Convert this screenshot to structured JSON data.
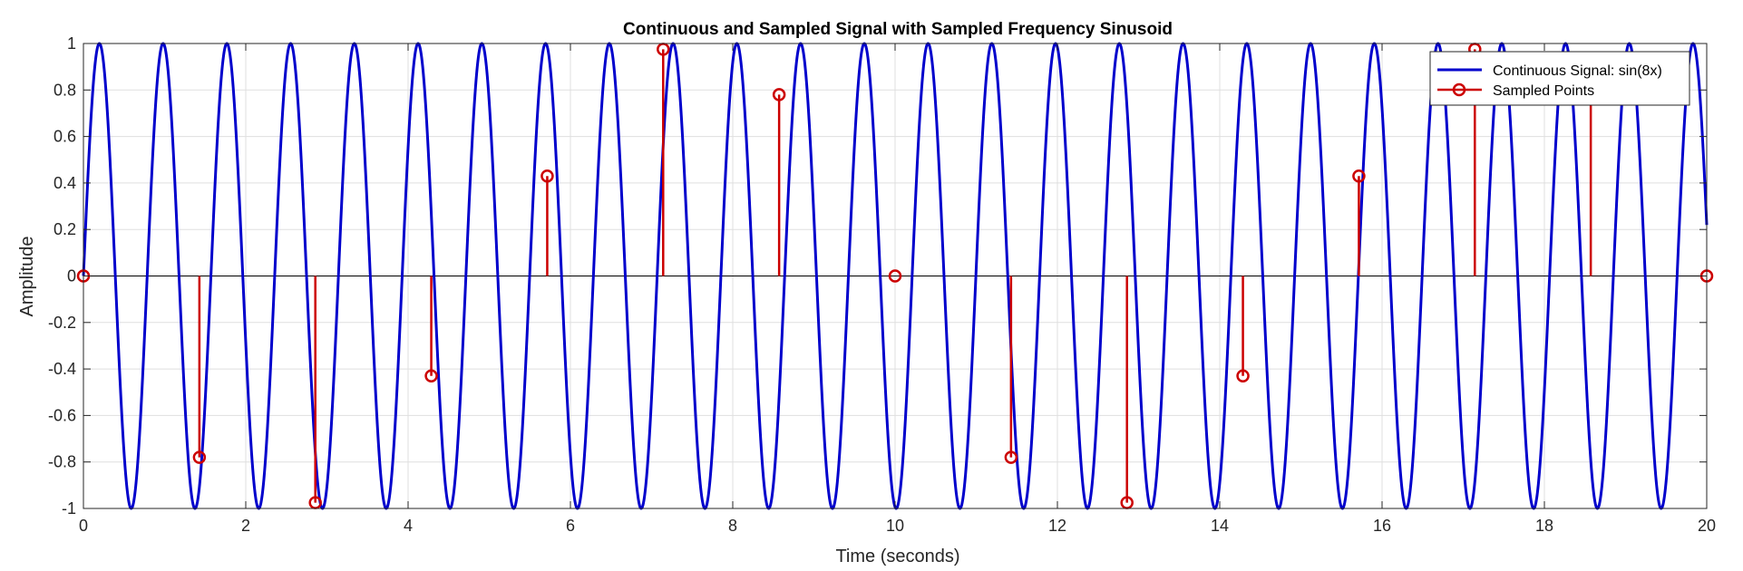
{
  "chart_data": {
    "type": "line",
    "title": "Continuous and Sampled Signal with Sampled Frequency Sinusoid",
    "xlabel": "Time (seconds)",
    "ylabel": "Amplitude",
    "xlim": [
      0,
      20
    ],
    "ylim": [
      -1,
      1
    ],
    "xticks": [
      0,
      2,
      4,
      6,
      8,
      10,
      12,
      14,
      16,
      18,
      20
    ],
    "yticks": [
      -1,
      -0.8,
      -0.6,
      -0.4,
      -0.2,
      0,
      0.2,
      0.4,
      0.6,
      0.8,
      1
    ],
    "grid": true,
    "legend_position": "top-right",
    "series": [
      {
        "name": "Continuous Signal: sin(8x)",
        "style": "line",
        "color": "#0000cc",
        "function": "sin(8x)"
      },
      {
        "name": "Sampled Points",
        "style": "stem",
        "color": "#cc0000",
        "x": [
          0,
          1.4286,
          2.8571,
          4.2857,
          5.7143,
          7.1429,
          8.5714,
          10,
          11.4286,
          12.8571,
          14.2857,
          15.7143,
          17.1429,
          18.5714,
          20
        ],
        "y": [
          0,
          -0.78,
          -0.975,
          -0.43,
          0.43,
          0.975,
          0.78,
          0,
          -0.78,
          -0.975,
          -0.43,
          0.43,
          0.975,
          0.78,
          0
        ]
      }
    ]
  }
}
